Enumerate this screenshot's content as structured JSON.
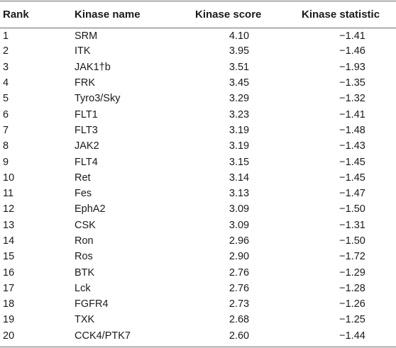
{
  "table": {
    "headers": {
      "rank": "Rank",
      "kinase_name": "Kinase name",
      "kinase_score": "Kinase score",
      "kinase_statistic": "Kinase statistic"
    },
    "rows": [
      {
        "rank": "1",
        "name": "SRM",
        "score": "4.10",
        "statistic": "−1.41"
      },
      {
        "rank": "2",
        "name": "ITK",
        "score": "3.95",
        "statistic": "−1.46"
      },
      {
        "rank": "3",
        "name": "JAK1†b",
        "score": "3.51",
        "statistic": "−1.93"
      },
      {
        "rank": "4",
        "name": "FRK",
        "score": "3.45",
        "statistic": "−1.35"
      },
      {
        "rank": "5",
        "name": "Tyro3/Sky",
        "score": "3.29",
        "statistic": "−1.32"
      },
      {
        "rank": "6",
        "name": "FLT1",
        "score": "3.23",
        "statistic": "−1.41"
      },
      {
        "rank": "7",
        "name": "FLT3",
        "score": "3.19",
        "statistic": "−1.48"
      },
      {
        "rank": "8",
        "name": "JAK2",
        "score": "3.19",
        "statistic": "−1.43"
      },
      {
        "rank": "9",
        "name": "FLT4",
        "score": "3.15",
        "statistic": "−1.45"
      },
      {
        "rank": "10",
        "name": "Ret",
        "score": "3.14",
        "statistic": "−1.45"
      },
      {
        "rank": "11",
        "name": "Fes",
        "score": "3.13",
        "statistic": "−1.47"
      },
      {
        "rank": "12",
        "name": "EphA2",
        "score": "3.09",
        "statistic": "−1.50"
      },
      {
        "rank": "13",
        "name": "CSK",
        "score": "3.09",
        "statistic": "−1.31"
      },
      {
        "rank": "14",
        "name": "Ron",
        "score": "2.96",
        "statistic": "−1.50"
      },
      {
        "rank": "15",
        "name": "Ros",
        "score": "2.90",
        "statistic": "−1.72"
      },
      {
        "rank": "16",
        "name": "BTK",
        "score": "2.76",
        "statistic": "−1.29"
      },
      {
        "rank": "17",
        "name": "Lck",
        "score": "2.76",
        "statistic": "−1.28"
      },
      {
        "rank": "18",
        "name": "FGFR4",
        "score": "2.73",
        "statistic": "−1.26"
      },
      {
        "rank": "19",
        "name": "TXK",
        "score": "2.68",
        "statistic": "−1.25"
      },
      {
        "rank": "20",
        "name": "CCK4/PTK7",
        "score": "2.60",
        "statistic": "−1.44"
      }
    ]
  }
}
